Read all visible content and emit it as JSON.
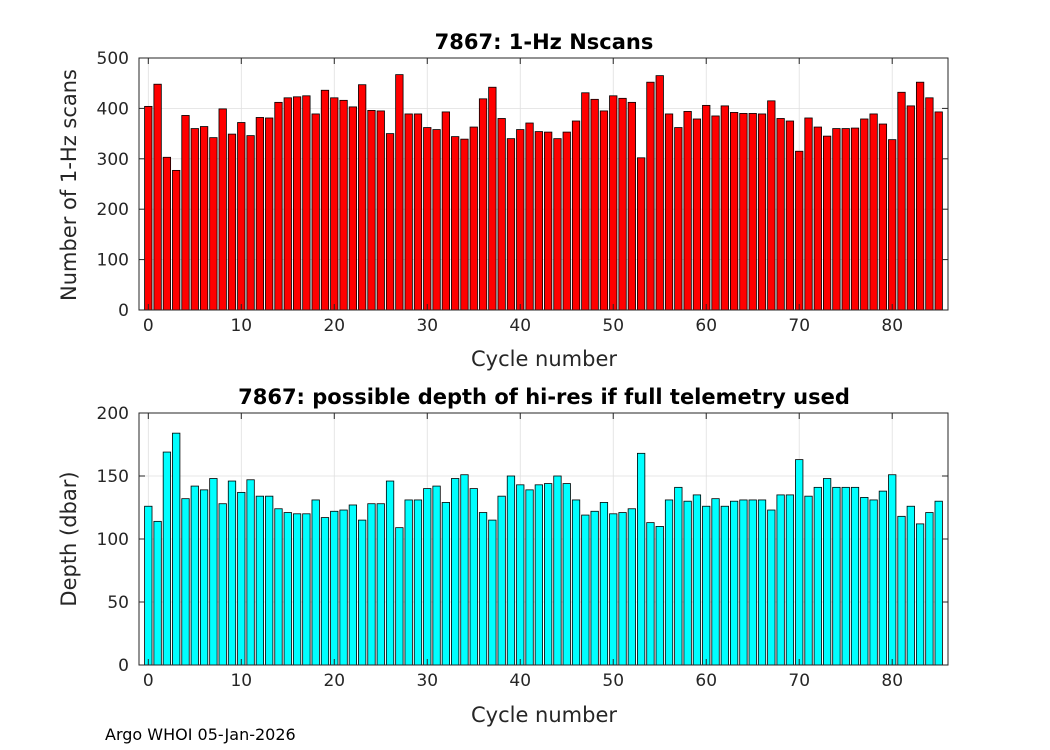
{
  "footer": "Argo WHOI 05-Jan-2026",
  "chart_data": [
    {
      "type": "bar",
      "title": "7867: 1-Hz Nscans",
      "xlabel": "Cycle number",
      "ylabel": "Number of 1-Hz scans",
      "color": "#ff0000",
      "xlim": [
        -1,
        86
      ],
      "ylim": [
        0,
        500
      ],
      "xticks": [
        0,
        10,
        20,
        30,
        40,
        50,
        60,
        70,
        80
      ],
      "yticks": [
        0,
        100,
        200,
        300,
        400,
        500
      ],
      "grid": true,
      "x": [
        0,
        1,
        2,
        3,
        4,
        5,
        6,
        7,
        8,
        9,
        10,
        11,
        12,
        13,
        14,
        15,
        16,
        17,
        18,
        19,
        20,
        21,
        22,
        23,
        24,
        25,
        26,
        27,
        28,
        29,
        30,
        31,
        32,
        33,
        34,
        35,
        36,
        37,
        38,
        39,
        40,
        41,
        42,
        43,
        44,
        45,
        46,
        47,
        48,
        49,
        50,
        51,
        52,
        53,
        54,
        55,
        56,
        57,
        58,
        59,
        60,
        61,
        62,
        63,
        64,
        65,
        66,
        67,
        68,
        69,
        70,
        71,
        72,
        73,
        74,
        75,
        76,
        77,
        78,
        79,
        80,
        81,
        82,
        83,
        84,
        85
      ],
      "values": [
        404,
        448,
        303,
        277,
        386,
        360,
        364,
        342,
        399,
        349,
        372,
        346,
        382,
        381,
        412,
        421,
        423,
        425,
        389,
        436,
        421,
        416,
        403,
        447,
        396,
        395,
        350,
        467,
        389,
        389,
        362,
        358,
        393,
        344,
        339,
        363,
        419,
        442,
        380,
        340,
        358,
        371,
        354,
        353,
        340,
        353,
        375,
        431,
        418,
        395,
        425,
        420,
        412,
        302,
        452,
        465,
        389,
        362,
        394,
        379,
        406,
        385,
        405,
        392,
        390,
        390,
        389,
        415,
        380,
        375,
        315,
        381,
        363,
        345,
        360,
        360,
        361,
        379,
        389,
        369,
        338,
        432,
        405,
        452,
        421,
        393
      ]
    },
    {
      "type": "bar",
      "title": "7867: possible depth of hi-res if full telemetry used",
      "xlabel": "Cycle number",
      "ylabel": "Depth (dbar)",
      "color": "#00ffff",
      "xlim": [
        -1,
        86
      ],
      "ylim": [
        0,
        200
      ],
      "xticks": [
        0,
        10,
        20,
        30,
        40,
        50,
        60,
        70,
        80
      ],
      "yticks": [
        0,
        50,
        100,
        150,
        200
      ],
      "grid": true,
      "x": [
        0,
        1,
        2,
        3,
        4,
        5,
        6,
        7,
        8,
        9,
        10,
        11,
        12,
        13,
        14,
        15,
        16,
        17,
        18,
        19,
        20,
        21,
        22,
        23,
        24,
        25,
        26,
        27,
        28,
        29,
        30,
        31,
        32,
        33,
        34,
        35,
        36,
        37,
        38,
        39,
        40,
        41,
        42,
        43,
        44,
        45,
        46,
        47,
        48,
        49,
        50,
        51,
        52,
        53,
        54,
        55,
        56,
        57,
        58,
        59,
        60,
        61,
        62,
        63,
        64,
        65,
        66,
        67,
        68,
        69,
        70,
        71,
        72,
        73,
        74,
        75,
        76,
        77,
        78,
        79,
        80,
        81,
        82,
        83,
        84,
        85
      ],
      "values": [
        126,
        114,
        169,
        184,
        132,
        142,
        139,
        148,
        128,
        146,
        137,
        147,
        134,
        134,
        124,
        121,
        120,
        120,
        131,
        117,
        122,
        123,
        127,
        115,
        128,
        128,
        146,
        109,
        131,
        131,
        140,
        142,
        129,
        148,
        151,
        140,
        121,
        115,
        134,
        150,
        143,
        139,
        143,
        144,
        150,
        144,
        131,
        119,
        122,
        129,
        120,
        121,
        124,
        168,
        113,
        110,
        131,
        141,
        130,
        135,
        126,
        132,
        126,
        130,
        131,
        131,
        131,
        123,
        135,
        135,
        163,
        134,
        141,
        148,
        141,
        141,
        141,
        133,
        131,
        138,
        151,
        118,
        126,
        112,
        121,
        130
      ]
    }
  ]
}
